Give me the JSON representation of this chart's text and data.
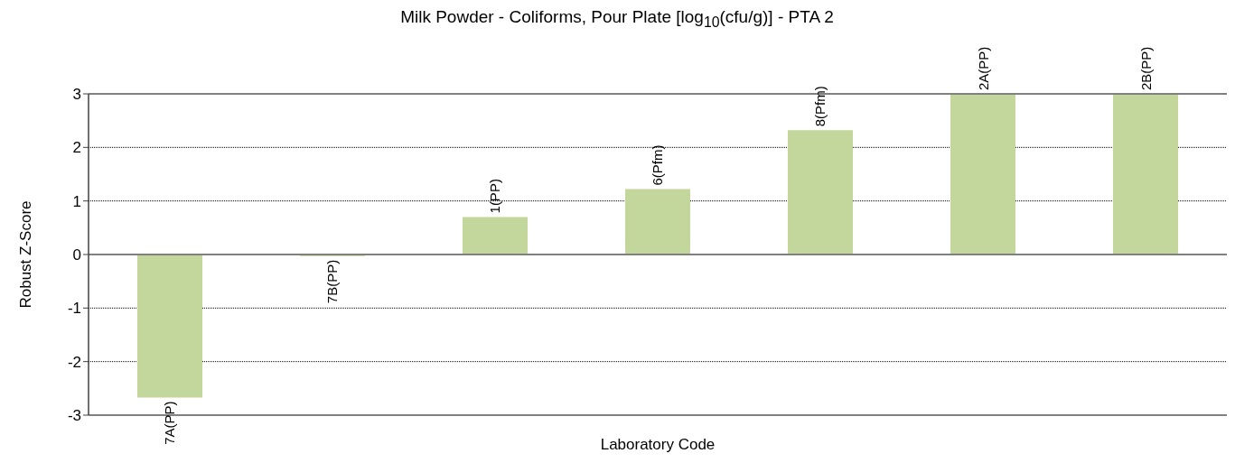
{
  "chart_data": {
    "type": "bar",
    "title": "Milk Powder - Coliforms, Pour Plate [log$_{10}$(cfu/g)] - PTA 2",
    "xlabel": "Laboratory Code",
    "ylabel": "Robust Z-Score",
    "categories": [
      "7A(PP)",
      "7B(PP)",
      "1(PP)",
      "6(Pfm)",
      "8(Pfm)",
      "2A(PP)",
      "2B(PP)"
    ],
    "values": [
      -2.67,
      -0.03,
      0.7,
      1.22,
      2.32,
      3,
      3
    ],
    "color": "#c3d69b",
    "ylim": [
      -3,
      3
    ],
    "yticks": [
      -3,
      -2,
      -1,
      0,
      1,
      2,
      3
    ],
    "grid": "y",
    "tick_labels": "y",
    "legend": false
  }
}
